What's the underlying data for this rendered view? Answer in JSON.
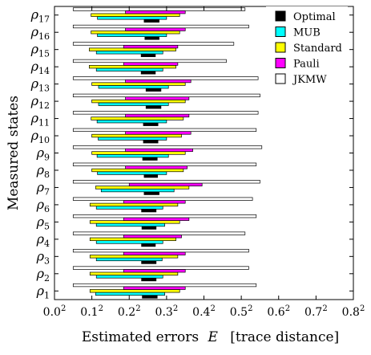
{
  "chart_data": {
    "type": "bar",
    "orientation": "horizontal",
    "categories": [
      "ρ1",
      "ρ2",
      "ρ3",
      "ρ4",
      "ρ5",
      "ρ6",
      "ρ7",
      "ρ8",
      "ρ9",
      "ρ10",
      "ρ11",
      "ρ12",
      "ρ13",
      "ρ14",
      "ρ15",
      "ρ16",
      "ρ17"
    ],
    "category_labels": [
      {
        "base": "ρ",
        "sub": "1"
      },
      {
        "base": "ρ",
        "sub": "2"
      },
      {
        "base": "ρ",
        "sub": "3"
      },
      {
        "base": "ρ",
        "sub": "4"
      },
      {
        "base": "ρ",
        "sub": "5"
      },
      {
        "base": "ρ",
        "sub": "6"
      },
      {
        "base": "ρ",
        "sub": "7"
      },
      {
        "base": "ρ",
        "sub": "8"
      },
      {
        "base": "ρ",
        "sub": "9"
      },
      {
        "base": "ρ",
        "sub": "10"
      },
      {
        "base": "ρ",
        "sub": "11"
      },
      {
        "base": "ρ",
        "sub": "12"
      },
      {
        "base": "ρ",
        "sub": "13"
      },
      {
        "base": "ρ",
        "sub": "14"
      },
      {
        "base": "ρ",
        "sub": "15"
      },
      {
        "base": "ρ",
        "sub": "16"
      },
      {
        "base": "ρ",
        "sub": "17"
      }
    ],
    "xlabel": "Estimated errors",
    "xlabel_symbol": "E",
    "xlabel_unit": "[trace distance]",
    "ylabel": "Measured states",
    "xlim": [
      0,
      0.8
    ],
    "xticks": [
      0.0,
      0.1,
      0.2,
      0.3,
      0.4,
      0.5,
      0.6,
      0.7,
      0.8
    ],
    "xtick_labels": [
      {
        "base": "0.0",
        "sup": "2"
      },
      {
        "base": "0.1",
        "sup": "2"
      },
      {
        "base": "0.2",
        "sup": "2"
      },
      {
        "base": "0.3",
        "sup": "2"
      },
      {
        "base": "0.4",
        "sup": "2"
      },
      {
        "base": "0.5",
        "sup": "2"
      },
      {
        "base": "0.6",
        "sup": "2"
      },
      {
        "base": "0.7",
        "sup": "2"
      },
      {
        "base": "0.8",
        "sup": "2"
      }
    ],
    "legend_position": "top-right",
    "grid": false,
    "series": [
      {
        "name": "Optimal",
        "color": "#000000",
        "ranges": [
          [
            0.235,
            0.275
          ],
          [
            0.233,
            0.272
          ],
          [
            0.233,
            0.272
          ],
          [
            0.233,
            0.27
          ],
          [
            0.234,
            0.272
          ],
          [
            0.233,
            0.272
          ],
          [
            0.24,
            0.28
          ],
          [
            0.24,
            0.276
          ],
          [
            0.236,
            0.275
          ],
          [
            0.238,
            0.277
          ],
          [
            0.238,
            0.277
          ],
          [
            0.245,
            0.285
          ],
          [
            0.245,
            0.285
          ],
          [
            0.232,
            0.27
          ],
          [
            0.232,
            0.27
          ],
          [
            0.242,
            0.28
          ],
          [
            0.24,
            0.28
          ]
        ]
      },
      {
        "name": "MUB",
        "color": "#00ffff",
        "ranges": [
          [
            0.11,
            0.295
          ],
          [
            0.112,
            0.29
          ],
          [
            0.112,
            0.288
          ],
          [
            0.112,
            0.29
          ],
          [
            0.112,
            0.295
          ],
          [
            0.112,
            0.29
          ],
          [
            0.125,
            0.32
          ],
          [
            0.115,
            0.3
          ],
          [
            0.114,
            0.305
          ],
          [
            0.117,
            0.3
          ],
          [
            0.114,
            0.3
          ],
          [
            0.118,
            0.305
          ],
          [
            0.118,
            0.305
          ],
          [
            0.112,
            0.29
          ],
          [
            0.112,
            0.29
          ],
          [
            0.115,
            0.3
          ],
          [
            0.115,
            0.3
          ]
        ]
      },
      {
        "name": "Standard",
        "color": "#ffff00",
        "ranges": [
          [
            0.095,
            0.335
          ],
          [
            0.095,
            0.33
          ],
          [
            0.095,
            0.33
          ],
          [
            0.095,
            0.325
          ],
          [
            0.095,
            0.335
          ],
          [
            0.095,
            0.33
          ],
          [
            0.11,
            0.36
          ],
          [
            0.1,
            0.345
          ],
          [
            0.1,
            0.35
          ],
          [
            0.1,
            0.34
          ],
          [
            0.098,
            0.345
          ],
          [
            0.1,
            0.35
          ],
          [
            0.1,
            0.35
          ],
          [
            0.093,
            0.325
          ],
          [
            0.093,
            0.325
          ],
          [
            0.098,
            0.335
          ],
          [
            0.098,
            0.335
          ]
        ]
      },
      {
        "name": "Pauli",
        "color": "#ff00ff",
        "ranges": [
          [
            0.185,
            0.35
          ],
          [
            0.185,
            0.35
          ],
          [
            0.185,
            0.35
          ],
          [
            0.185,
            0.34
          ],
          [
            0.185,
            0.36
          ],
          [
            0.185,
            0.35
          ],
          [
            0.2,
            0.395
          ],
          [
            0.19,
            0.355
          ],
          [
            0.19,
            0.37
          ],
          [
            0.19,
            0.365
          ],
          [
            0.19,
            0.36
          ],
          [
            0.19,
            0.36
          ],
          [
            0.19,
            0.365
          ],
          [
            0.185,
            0.33
          ],
          [
            0.185,
            0.33
          ],
          [
            0.19,
            0.35
          ],
          [
            0.19,
            0.35
          ]
        ]
      },
      {
        "name": "JKMW",
        "color": "#ffffff",
        "ranges": [
          [
            0.05,
            0.54
          ],
          [
            0.05,
            0.52
          ],
          [
            0.05,
            0.52
          ],
          [
            0.05,
            0.51
          ],
          [
            0.05,
            0.54
          ],
          [
            0.05,
            0.53
          ],
          [
            0.05,
            0.55
          ],
          [
            0.05,
            0.54
          ],
          [
            0.05,
            0.555
          ],
          [
            0.05,
            0.54
          ],
          [
            0.05,
            0.545
          ],
          [
            0.05,
            0.55
          ],
          [
            0.05,
            0.545
          ],
          [
            0.05,
            0.46
          ],
          [
            0.05,
            0.48
          ],
          [
            0.05,
            0.52
          ],
          [
            0.05,
            0.51
          ]
        ]
      }
    ]
  }
}
